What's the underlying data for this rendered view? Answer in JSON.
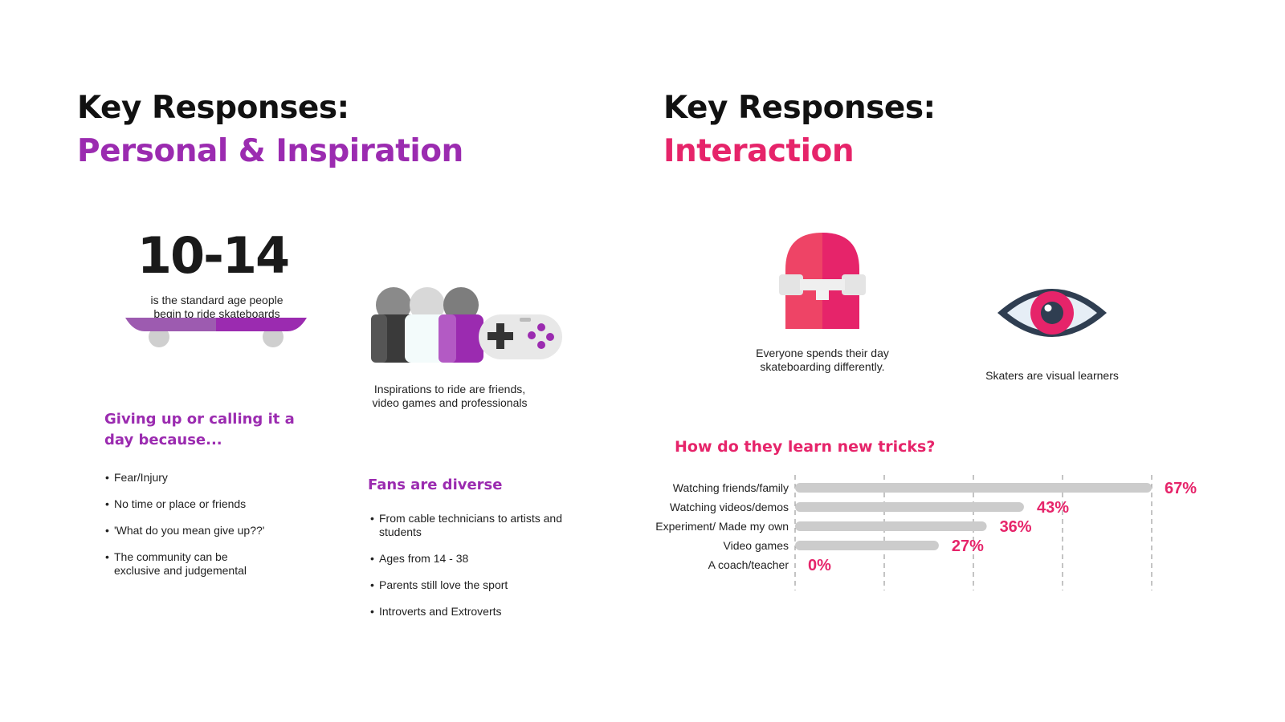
{
  "left": {
    "heading_line1": "Key Responses:",
    "heading_line2": "Personal & Inspiration",
    "age_range": "10-14",
    "age_caption_line1": "is the standard age people",
    "age_caption_line2": "begin to ride skateboards",
    "inspiration_line1": "Inspirations to ride are friends,",
    "inspiration_line2": "video games and professionals",
    "giving_up_title_line1": "Giving up or calling it a",
    "giving_up_title_line2": "day because...",
    "giving_up_items": [
      "Fear/Injury",
      "No time or place or friends",
      "'What do you mean give up??'",
      "The community can be exclusive and judgemental"
    ],
    "fans_title": "Fans are diverse",
    "fans_items": [
      "From cable technicians to artists and students",
      "Ages from 14 - 38",
      "Parents still love the sport",
      "Introverts and Extroverts"
    ]
  },
  "right": {
    "heading_line1": "Key Responses:",
    "heading_line2": "Interaction",
    "skate_caption_line1": "Everyone spends their day",
    "skate_caption_line2": "skateboarding differently.",
    "eye_caption": "Skaters are visual learners"
  },
  "colors": {
    "purple": "#9b2bb0",
    "pink": "#e6246a",
    "bar_gray": "#cccccc",
    "dark": "#111111"
  },
  "icons": [
    "skateboard-icon",
    "group-of-people-icon",
    "game-controller-icon",
    "skateboard-deck-icon",
    "eye-icon"
  ],
  "chart_data": {
    "type": "bar",
    "orientation": "horizontal",
    "title": "How do they learn new tricks?",
    "categories": [
      "Watching friends/family",
      "Watching videos/demos",
      "Experiment/ Made my own",
      "Video games",
      "A coach/teacher"
    ],
    "values": [
      67,
      43,
      36,
      27,
      0
    ],
    "value_labels": [
      "67%",
      "43%",
      "36%",
      "27%",
      "0%"
    ],
    "unit": "%",
    "xlim": [
      0,
      67
    ],
    "grid": true,
    "grid_style": "dashed",
    "legend": "none"
  }
}
